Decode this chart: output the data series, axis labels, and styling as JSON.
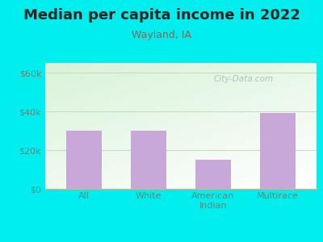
{
  "title": "Median per capita income in 2022",
  "subtitle": "Wayland, IA",
  "categories": [
    "All",
    "White",
    "American\nIndian",
    "Multirace"
  ],
  "values": [
    30000,
    30000,
    15000,
    39000
  ],
  "bar_color": "#c8a8d8",
  "title_color": "#222222",
  "subtitle_color": "#7a6a5a",
  "background_outer": "#00eeee",
  "background_inner_top": "#d8f0d8",
  "background_inner_bottom": "#f8fff8",
  "yticks": [
    0,
    20000,
    40000,
    60000
  ],
  "ytick_labels": [
    "$0",
    "$20k",
    "$40k",
    "$60k"
  ],
  "ylim": [
    0,
    65000
  ],
  "watermark": "City-Data.com",
  "title_fontsize": 13,
  "subtitle_fontsize": 9,
  "tick_fontsize": 8,
  "axis_tick_color": "#5a8a7a",
  "grid_color": "#c8dcc8",
  "spine_color": "#a8c8a8"
}
